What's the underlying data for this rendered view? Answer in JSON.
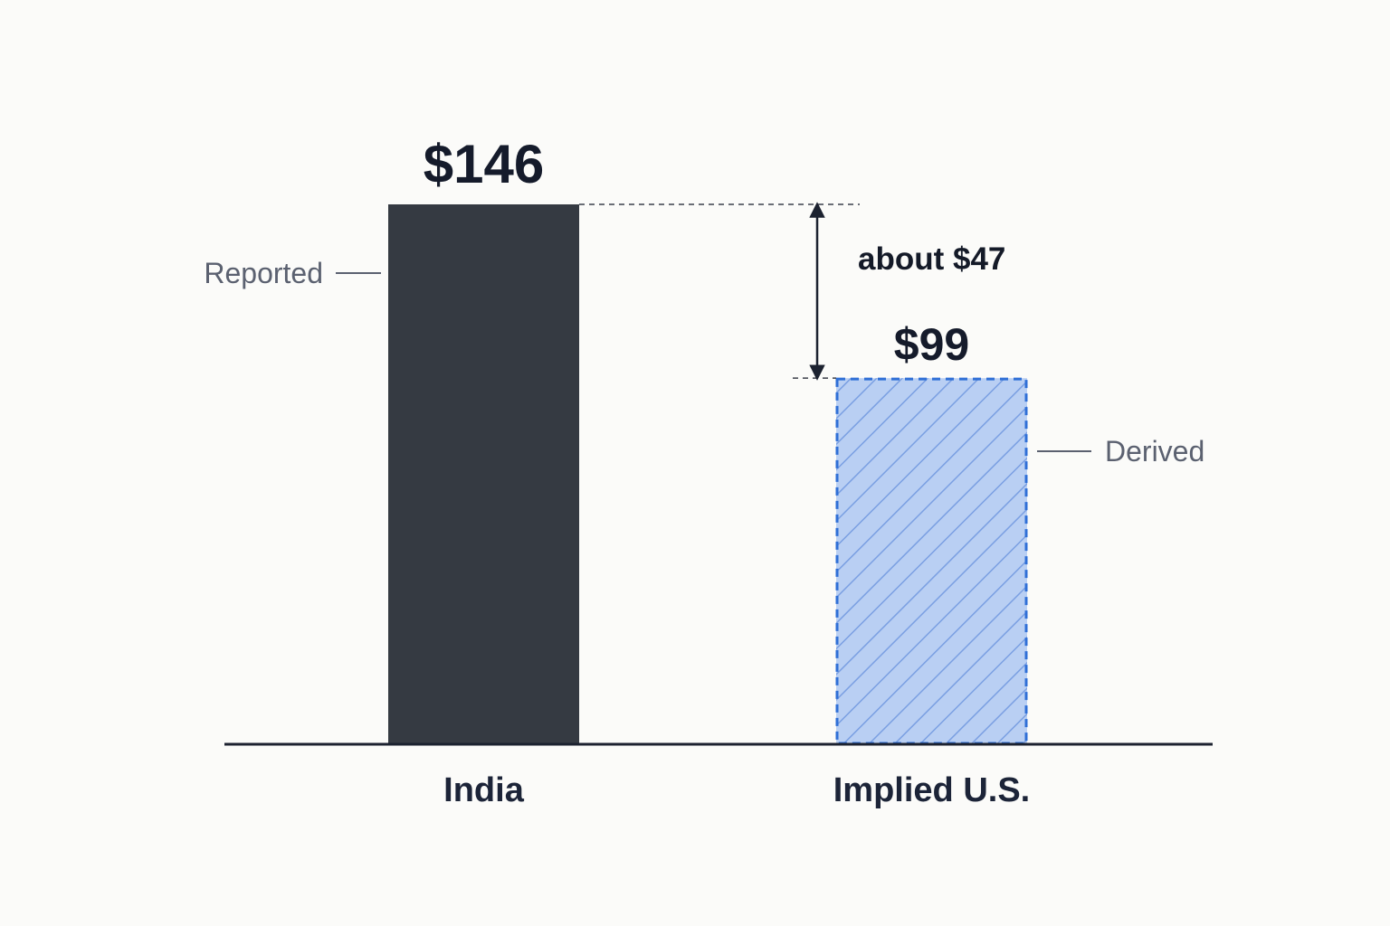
{
  "chart_data": {
    "type": "bar",
    "title": "",
    "xlabel": "",
    "ylabel": "",
    "ylim": [
      0,
      146
    ],
    "grid": false,
    "categories": [
      "India",
      "Implied U.S."
    ],
    "values": [
      146,
      99
    ],
    "value_labels": [
      "$146",
      "$99"
    ],
    "bar_styles": [
      "solid",
      "hatched-dashed"
    ],
    "side_labels": [
      "Reported",
      "Derived"
    ],
    "difference": {
      "value": 47,
      "label": "about $47",
      "from_category": "India",
      "to_category": "Implied U.S."
    },
    "colors": {
      "reported": "#353a42",
      "derived_fill": "#b9cff3",
      "derived_stroke": "#2f6fd6",
      "derived_hatch": "#6f97df",
      "axis": "#1c2230",
      "guide": "#3a3f4a",
      "tick": "#5b6170"
    }
  }
}
